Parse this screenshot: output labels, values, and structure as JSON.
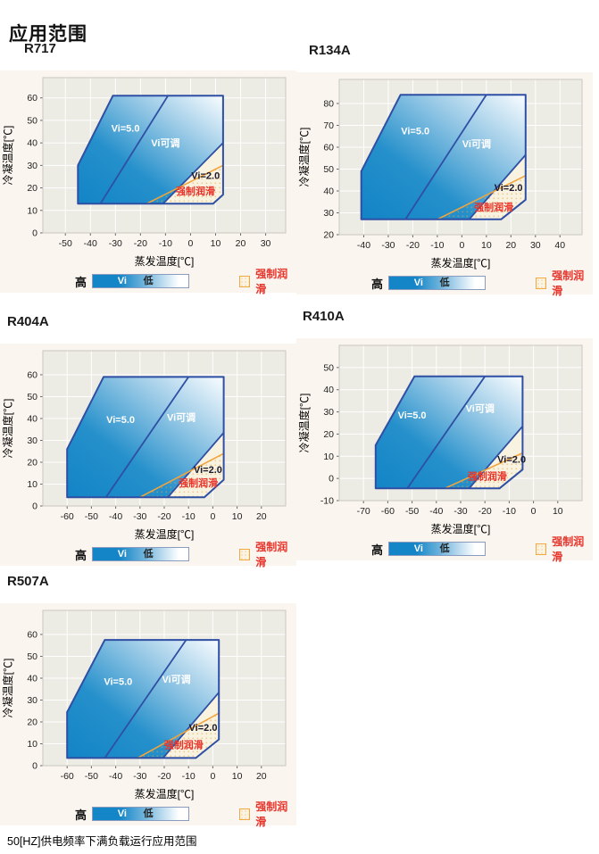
{
  "page": {
    "title": "应用范围",
    "footnote": "50[HZ]供电频率下满负载运行应用范围"
  },
  "legend": {
    "high": "高",
    "vi": "Vi",
    "low": "低",
    "forced": "强制润滑"
  },
  "colors": {
    "region_blue": "#1486C7",
    "line_blue": "#2E4FA3",
    "orange": "#F2A43C",
    "red": "#E8332A",
    "plot_bg": "#ECEBE4",
    "cream": "#F8F2E0",
    "card_bg": "#FAF5EE",
    "grid": "#FFFFFF"
  },
  "chart_data": [
    {
      "type": "area",
      "title": "R717",
      "xlabel": "蒸发温度[℃]",
      "ylabel": "冷凝温度[℃]",
      "xlim": [
        -59,
        38
      ],
      "ylim": [
        0,
        69
      ],
      "xticks": [
        -50,
        -40,
        -30,
        -20,
        -10,
        0,
        10,
        20,
        30
      ],
      "yticks": [
        0,
        10,
        20,
        30,
        40,
        50,
        60
      ],
      "envelope": [
        [
          -45,
          13
        ],
        [
          -45,
          30
        ],
        [
          -31,
          61
        ],
        [
          13,
          61
        ],
        [
          13,
          17
        ],
        [
          9,
          13
        ]
      ],
      "vi2_region": [
        [
          -11,
          13
        ],
        [
          13,
          40
        ],
        [
          13,
          17
        ],
        [
          9,
          13
        ]
      ],
      "forced_region": [
        [
          -17.5,
          13
        ],
        [
          13,
          30
        ],
        [
          13,
          17
        ],
        [
          9,
          13
        ]
      ],
      "vi_line_1": [
        [
          -36,
          13
        ],
        [
          -9,
          61
        ]
      ],
      "vi_line_2": [
        [
          -11,
          13
        ],
        [
          13,
          40
        ]
      ],
      "forced_line": [
        [
          -17.5,
          13
        ],
        [
          13,
          30
        ]
      ],
      "labels": [
        {
          "text": "Vi=5.0",
          "x": -26,
          "y": 45,
          "color": "#FFFFFF"
        },
        {
          "text": "Vi可调",
          "x": -10,
          "y": 38.5,
          "color": "#FFFFFF"
        },
        {
          "text": "Vi=2.0",
          "x": 6,
          "y": 24,
          "color": "#1B1B30"
        },
        {
          "text": "强制润滑",
          "x": 2,
          "y": 17,
          "color": "#E8332A"
        }
      ]
    },
    {
      "type": "area",
      "title": "R134A",
      "xlabel": "蒸发温度[℃]",
      "ylabel": "冷凝温度[℃]",
      "xlim": [
        -50,
        49
      ],
      "ylim": [
        20,
        91
      ],
      "xticks": [
        -40,
        -30,
        -20,
        -10,
        0,
        10,
        20,
        30,
        40
      ],
      "yticks": [
        20,
        30,
        40,
        50,
        60,
        70,
        80
      ],
      "envelope": [
        [
          -41,
          27
        ],
        [
          -41,
          49
        ],
        [
          -25,
          84
        ],
        [
          26,
          84
        ],
        [
          26,
          36
        ],
        [
          16,
          27
        ]
      ],
      "vi2_region": [
        [
          3,
          27
        ],
        [
          26,
          56.5
        ],
        [
          26,
          36
        ],
        [
          16,
          27
        ]
      ],
      "forced_region": [
        [
          -10,
          27
        ],
        [
          26,
          47
        ],
        [
          26,
          36
        ],
        [
          16,
          27
        ]
      ],
      "vi_line_1": [
        [
          -23,
          27
        ],
        [
          10,
          84
        ]
      ],
      "vi_line_2": [
        [
          3,
          27
        ],
        [
          26,
          56.5
        ]
      ],
      "forced_line": [
        [
          -10,
          27
        ],
        [
          26,
          47
        ]
      ],
      "labels": [
        {
          "text": "Vi=5.0",
          "x": -19,
          "y": 66,
          "color": "#FFFFFF"
        },
        {
          "text": "Vi可调",
          "x": 6,
          "y": 60,
          "color": "#FFFFFF"
        },
        {
          "text": "Vi=2.0",
          "x": 19,
          "y": 40,
          "color": "#1B1B30"
        },
        {
          "text": "强制润滑",
          "x": 13,
          "y": 31,
          "color": "#E8332A"
        }
      ]
    },
    {
      "type": "area",
      "title": "R404A",
      "xlabel": "蒸发温度[℃]",
      "ylabel": "冷凝温度[℃]",
      "xlim": [
        -70,
        30
      ],
      "ylim": [
        0,
        71
      ],
      "xticks": [
        -60,
        -50,
        -40,
        -30,
        -20,
        -10,
        0,
        10,
        20
      ],
      "yticks": [
        0,
        10,
        20,
        30,
        40,
        50,
        60
      ],
      "envelope": [
        [
          -60,
          4
        ],
        [
          -60,
          26
        ],
        [
          -45,
          59
        ],
        [
          4.5,
          59
        ],
        [
          4.5,
          12
        ],
        [
          -3.5,
          4
        ]
      ],
      "vi2_region": [
        [
          -18.5,
          4
        ],
        [
          4.5,
          33.5
        ],
        [
          4.5,
          12
        ],
        [
          -3.5,
          4
        ]
      ],
      "forced_region": [
        [
          -30,
          4
        ],
        [
          4.5,
          24
        ],
        [
          4.5,
          12
        ],
        [
          -3.5,
          4
        ]
      ],
      "vi_line_1": [
        [
          -44,
          4
        ],
        [
          -10,
          59
        ]
      ],
      "vi_line_2": [
        [
          -18.5,
          4
        ],
        [
          4.5,
          33.5
        ]
      ],
      "forced_line": [
        [
          -30,
          4
        ],
        [
          4.5,
          24
        ]
      ],
      "labels": [
        {
          "text": "Vi=5.0",
          "x": -38,
          "y": 38,
          "color": "#FFFFFF"
        },
        {
          "text": "Vi可调",
          "x": -13,
          "y": 39,
          "color": "#FFFFFF"
        },
        {
          "text": "Vi=2.0",
          "x": -2,
          "y": 15,
          "color": "#1B1B30"
        },
        {
          "text": "强制润滑",
          "x": -6,
          "y": 9,
          "color": "#E8332A"
        }
      ]
    },
    {
      "type": "area",
      "title": "R410A",
      "xlabel": "蒸发温度[℃]",
      "ylabel": "冷凝温度[℃]",
      "xlim": [
        -80,
        20
      ],
      "ylim": [
        -10,
        60
      ],
      "xticks": [
        -70,
        -60,
        -50,
        -40,
        -30,
        -20,
        -10,
        0,
        10
      ],
      "yticks": [
        -10,
        0,
        10,
        20,
        30,
        40,
        50
      ],
      "envelope": [
        [
          -65,
          -4.5
        ],
        [
          -65,
          15
        ],
        [
          -49,
          46
        ],
        [
          -4.5,
          46
        ],
        [
          -4.5,
          4
        ],
        [
          -14,
          -4.5
        ]
      ],
      "vi2_region": [
        [
          -26.5,
          -4.5
        ],
        [
          -4.5,
          23.5
        ],
        [
          -4.5,
          4
        ],
        [
          -14,
          -4.5
        ]
      ],
      "forced_region": [
        [
          -36.5,
          -4.5
        ],
        [
          -4.5,
          11.5
        ],
        [
          -4.5,
          4
        ],
        [
          -14,
          -4.5
        ]
      ],
      "vi_line_1": [
        [
          -52,
          -4.5
        ],
        [
          -20,
          46
        ]
      ],
      "vi_line_2": [
        [
          -26.5,
          -4.5
        ],
        [
          -4.5,
          23.5
        ]
      ],
      "forced_line": [
        [
          -36.5,
          -4.5
        ],
        [
          -4.5,
          11.5
        ]
      ],
      "labels": [
        {
          "text": "Vi=5.0",
          "x": -50,
          "y": 27,
          "color": "#FFFFFF"
        },
        {
          "text": "Vi可调",
          "x": -22,
          "y": 30,
          "color": "#FFFFFF"
        },
        {
          "text": "Vi=2.0",
          "x": -9,
          "y": 7,
          "color": "#1B1B30"
        },
        {
          "text": "强制润滑",
          "x": -19,
          "y": -0.5,
          "color": "#E8332A"
        }
      ]
    },
    {
      "type": "area",
      "title": "R507A",
      "xlabel": "蒸发温度[℃]",
      "ylabel": "冷凝温度[℃]",
      "xlim": [
        -70,
        30
      ],
      "ylim": [
        0,
        71
      ],
      "xticks": [
        -60,
        -50,
        -40,
        -30,
        -20,
        -10,
        0,
        10,
        20
      ],
      "yticks": [
        0,
        10,
        20,
        30,
        40,
        50,
        60
      ],
      "envelope": [
        [
          -60,
          3.5
        ],
        [
          -60,
          24.5
        ],
        [
          -44.5,
          57.5
        ],
        [
          2.5,
          57.5
        ],
        [
          2.5,
          12
        ],
        [
          -7,
          3.5
        ]
      ],
      "vi2_region": [
        [
          -20.5,
          3.5
        ],
        [
          2.5,
          33.5
        ],
        [
          2.5,
          12
        ],
        [
          -7,
          3.5
        ]
      ],
      "forced_region": [
        [
          -31,
          3.5
        ],
        [
          2.5,
          24
        ],
        [
          2.5,
          12
        ],
        [
          -7,
          3.5
        ]
      ],
      "vi_line_1": [
        [
          -44.5,
          3.5
        ],
        [
          -11,
          57.5
        ]
      ],
      "vi_line_2": [
        [
          -20.5,
          3.5
        ],
        [
          2.5,
          33.5
        ]
      ],
      "forced_line": [
        [
          -31,
          3.5
        ],
        [
          2.5,
          24
        ]
      ],
      "labels": [
        {
          "text": "Vi=5.0",
          "x": -39,
          "y": 37,
          "color": "#FFFFFF"
        },
        {
          "text": "Vi可调",
          "x": -15,
          "y": 38,
          "color": "#FFFFFF"
        },
        {
          "text": "Vi=2.0",
          "x": -4,
          "y": 16,
          "color": "#1B1B30"
        },
        {
          "text": "强制润滑",
          "x": -12,
          "y": 8,
          "color": "#E8332A"
        }
      ]
    }
  ]
}
